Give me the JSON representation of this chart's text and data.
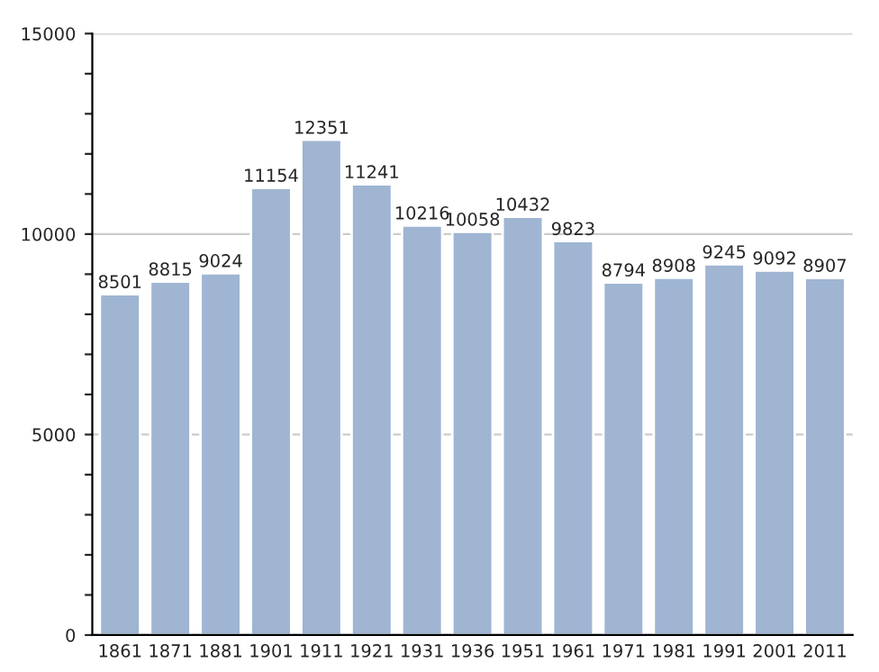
{
  "chart_data": {
    "type": "bar",
    "categories": [
      "1861",
      "1871",
      "1881",
      "1901",
      "1911",
      "1921",
      "1931",
      "1936",
      "1951",
      "1961",
      "1971",
      "1981",
      "1991",
      "2001",
      "2011"
    ],
    "values": [
      8501,
      8815,
      9024,
      11154,
      12351,
      11241,
      10216,
      10058,
      10432,
      9823,
      8794,
      8908,
      9245,
      9092,
      8907
    ],
    "color": "#9fb5d2",
    "ylim": [
      0,
      15000
    ],
    "yticks": [
      0,
      {
        "value": 1000,
        "label": null
      },
      {
        "value": 2000,
        "label": null
      },
      {
        "value": 3000,
        "label": null
      },
      {
        "value": 4000,
        "label": null
      },
      5000,
      {
        "value": 6000,
        "label": null
      },
      {
        "value": 7000,
        "label": null
      },
      {
        "value": 8000,
        "label": null
      },
      {
        "value": 9000,
        "label": null
      },
      10000,
      {
        "value": 11000,
        "label": null
      },
      {
        "value": 12000,
        "label": null
      },
      {
        "value": 13000,
        "label": null
      },
      {
        "value": 14000,
        "label": null
      },
      15000
    ],
    "grid": "y",
    "data_labels": true
  }
}
